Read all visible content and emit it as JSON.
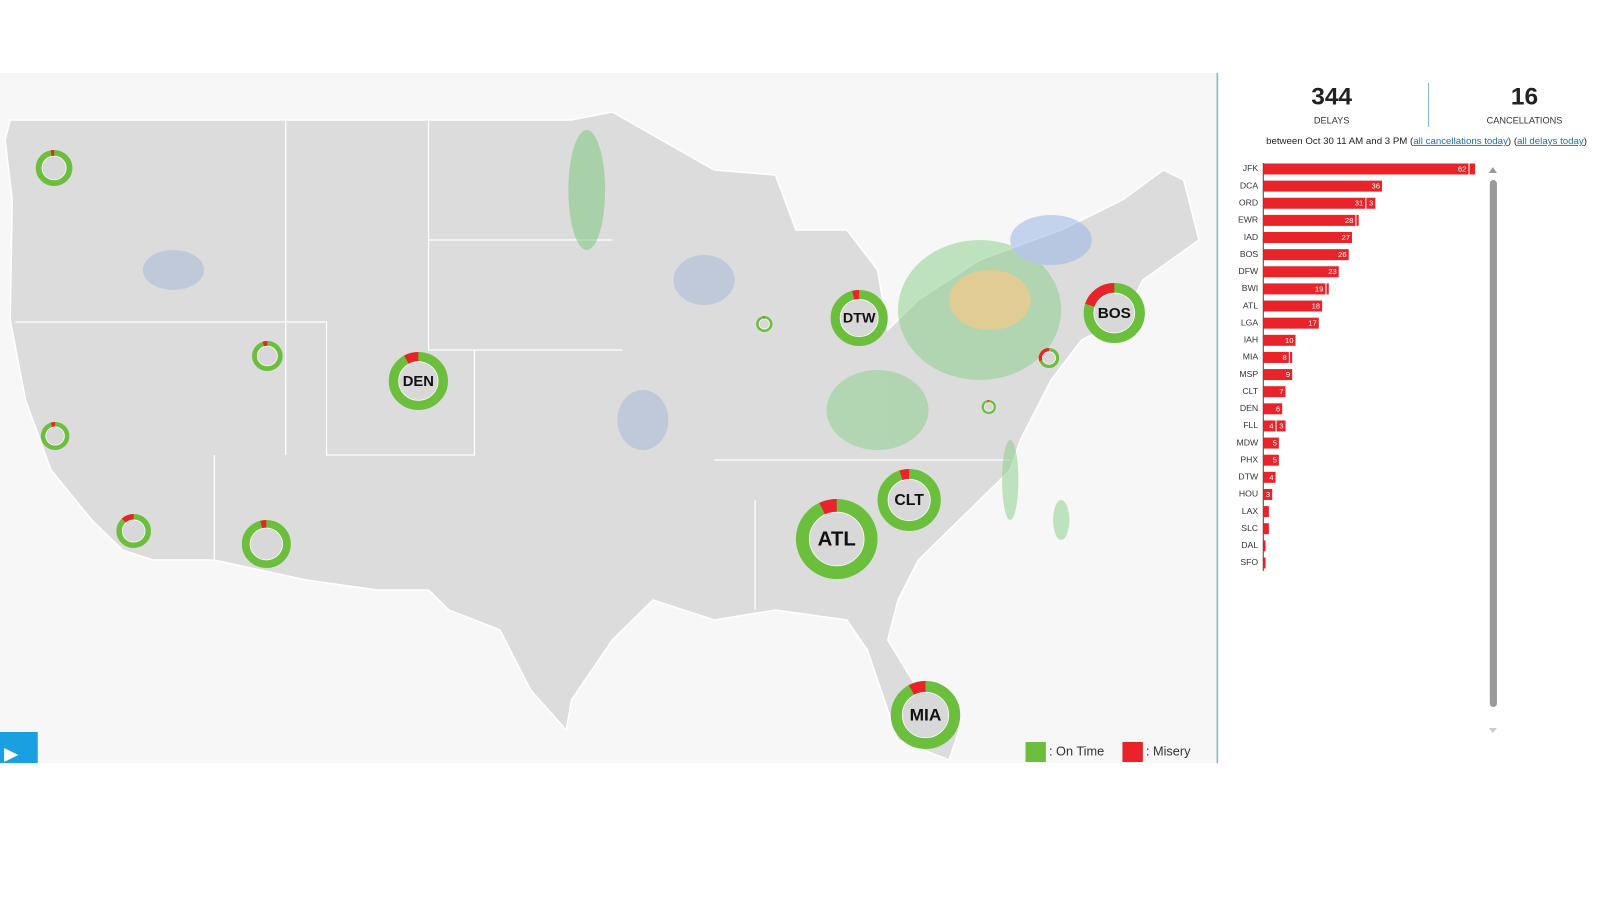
{
  "header": {
    "delays_count": "344",
    "delays_label": "DELAYS",
    "cancellations_count": "16",
    "cancellations_label": "CANCELLATIONS",
    "note_prefix": "between Oct 30 11 AM and 3 PM (",
    "link_cancellations": "all cancellations today",
    "note_middle": ") (",
    "link_delays": "all delays today",
    "note_suffix": ")"
  },
  "map": {
    "legend": [
      {
        "label": ": On Time",
        "color": "#6cbf3c"
      },
      {
        "label": ": Misery",
        "color": "#e8232a"
      }
    ],
    "airports": [
      {
        "label": null,
        "misery": 3
      },
      {
        "label": null,
        "misery": 5
      },
      {
        "label": null,
        "misery": 5
      },
      {
        "label": null,
        "misery": 12
      },
      {
        "label": null,
        "misery": 4
      },
      {
        "label": "DEN",
        "misery": 8
      },
      {
        "label": null,
        "misery": 2
      },
      {
        "label": "DTW",
        "misery": 4
      },
      {
        "label": null,
        "misery": 30
      },
      {
        "label": null,
        "misery": 3
      },
      {
        "label": "BOS",
        "misery": 20
      },
      {
        "label": "CLT",
        "misery": 5
      },
      {
        "label": "ATL",
        "misery": 7
      },
      {
        "label": "MIA",
        "misery": 8
      }
    ]
  },
  "chart_data": {
    "type": "bar",
    "stacked": true,
    "categories": [
      "JFK",
      "DCA",
      "ORD",
      "EWR",
      "IAD",
      "BOS",
      "DFW",
      "BWI",
      "ATL",
      "LGA",
      "IAH",
      "MIA",
      "MSP",
      "CLT",
      "DEN",
      "FLL",
      "MDW",
      "PHX",
      "DTW",
      "HOU",
      "LAX",
      "SLC",
      "DAL",
      "SFO"
    ],
    "series": [
      {
        "color": "#e8232a",
        "values": [
          62,
          36,
          31,
          28,
          27,
          26,
          23,
          19,
          18,
          17,
          10,
          8,
          9,
          7,
          6,
          4,
          5,
          5,
          4,
          3,
          2,
          2,
          1,
          1
        ]
      },
      {
        "color": "#e8232a",
        "values": [
          2,
          0,
          3,
          1,
          0,
          0,
          0,
          1,
          0,
          0,
          0,
          1,
          0,
          0,
          0,
          3,
          0,
          0,
          0,
          0,
          0,
          0,
          0,
          0
        ]
      }
    ]
  }
}
